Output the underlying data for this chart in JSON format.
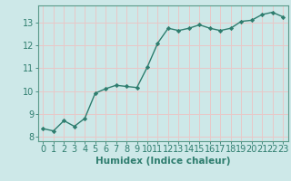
{
  "x": [
    0,
    1,
    2,
    3,
    4,
    5,
    6,
    7,
    8,
    9,
    10,
    11,
    12,
    13,
    14,
    15,
    16,
    17,
    18,
    19,
    20,
    21,
    22,
    23
  ],
  "y": [
    8.35,
    8.25,
    8.7,
    8.45,
    8.8,
    9.9,
    10.1,
    10.25,
    10.2,
    10.15,
    11.05,
    12.1,
    12.75,
    12.65,
    12.75,
    12.9,
    12.75,
    12.65,
    12.75,
    13.05,
    13.1,
    13.35,
    13.45,
    13.25
  ],
  "line_color": "#2e7d6e",
  "marker": "D",
  "marker_size": 2.2,
  "line_width": 1.0,
  "bg_color": "#cde8e8",
  "grid_color": "#b0d0d0",
  "xlabel": "Humidex (Indice chaleur)",
  "xlabel_fontsize": 7.5,
  "tick_label_fontsize": 7,
  "xlim": [
    -0.5,
    23.5
  ],
  "ylim": [
    7.8,
    13.75
  ],
  "yticks": [
    8,
    9,
    10,
    11,
    12,
    13
  ],
  "xticks": [
    0,
    1,
    2,
    3,
    4,
    5,
    6,
    7,
    8,
    9,
    10,
    11,
    12,
    13,
    14,
    15,
    16,
    17,
    18,
    19,
    20,
    21,
    22,
    23
  ],
  "spine_color": "#5a9a8a",
  "tick_color": "#2e7d6e"
}
